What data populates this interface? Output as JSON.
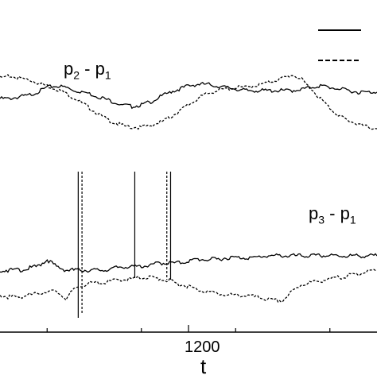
{
  "chart_data": {
    "type": "line",
    "xlabel": "t",
    "x_ticks": [
      1200
    ],
    "legend_placement": "top-right",
    "legend_entries": [
      {
        "style": "solid",
        "label": ""
      },
      {
        "style": "dashed",
        "label": ""
      }
    ],
    "annotations": [
      {
        "text_main": "p",
        "sub_a": "2",
        "mid": " - p",
        "sub_b": "1"
      },
      {
        "text_main": "p",
        "sub_a": "3",
        "mid": " - p",
        "sub_b": "1"
      }
    ],
    "x_range": [
      1000,
      1400
    ],
    "panels": [
      {
        "label": "p2 - p1",
        "series": [
          {
            "style": "solid",
            "x": [
              1000,
              1010,
              1020,
              1030,
              1040,
              1050,
              1060,
              1070,
              1080,
              1090,
              1100,
              1110,
              1120,
              1130,
              1140,
              1150,
              1160,
              1170,
              1180,
              1190,
              1200,
              1210,
              1220,
              1230,
              1240,
              1250,
              1260,
              1270,
              1280,
              1290,
              1300,
              1310,
              1320,
              1330,
              1340,
              1350,
              1360,
              1370,
              1380,
              1390,
              1400
            ],
            "y": [
              0.1,
              0.1,
              0.15,
              0.2,
              0.3,
              0.45,
              0.5,
              0.45,
              0.35,
              0.3,
              0.2,
              0.1,
              0.0,
              -0.1,
              -0.15,
              -0.1,
              0.0,
              0.15,
              0.3,
              0.4,
              0.5,
              0.55,
              0.55,
              0.5,
              0.45,
              0.4,
              0.35,
              0.35,
              0.35,
              0.35,
              0.35,
              0.35,
              0.4,
              0.45,
              0.5,
              0.45,
              0.4,
              0.35,
              0.3,
              0.3,
              0.3
            ]
          },
          {
            "style": "dashed",
            "x": [
              1000,
              1010,
              1020,
              1030,
              1040,
              1050,
              1060,
              1070,
              1080,
              1090,
              1100,
              1110,
              1120,
              1130,
              1140,
              1150,
              1160,
              1170,
              1180,
              1190,
              1200,
              1210,
              1220,
              1230,
              1240,
              1250,
              1260,
              1270,
              1280,
              1290,
              1300,
              1310,
              1320,
              1330,
              1340,
              1350,
              1360,
              1370,
              1380,
              1390,
              1400
            ],
            "y": [
              0.75,
              0.8,
              0.75,
              0.7,
              0.6,
              0.5,
              0.4,
              0.25,
              0.1,
              -0.1,
              -0.3,
              -0.5,
              -0.65,
              -0.75,
              -0.8,
              -0.8,
              -0.75,
              -0.65,
              -0.5,
              -0.3,
              -0.1,
              0.1,
              0.25,
              0.35,
              0.4,
              0.45,
              0.45,
              0.5,
              0.55,
              0.65,
              0.75,
              0.85,
              0.7,
              0.4,
              0.1,
              -0.2,
              -0.45,
              -0.6,
              -0.7,
              -0.8,
              -0.85
            ]
          }
        ]
      },
      {
        "label": "p3 - p1",
        "series": [
          {
            "style": "solid",
            "x": [
              1000,
              1010,
              1020,
              1030,
              1040,
              1050,
              1060,
              1070,
              1080,
              1090,
              1100,
              1110,
              1120,
              1130,
              1140,
              1150,
              1160,
              1170,
              1180,
              1190,
              1200,
              1210,
              1220,
              1230,
              1240,
              1250,
              1260,
              1270,
              1280,
              1290,
              1300,
              1310,
              1320,
              1330,
              1340,
              1350,
              1360,
              1370,
              1380,
              1390,
              1400
            ],
            "y": [
              0.0,
              0.0,
              0.0,
              0.05,
              0.1,
              0.3,
              0.1,
              0.0,
              0.0,
              0.0,
              0.0,
              0.0,
              0.05,
              0.1,
              0.1,
              0.1,
              0.15,
              0.2,
              0.2,
              0.2,
              0.25,
              0.3,
              0.3,
              0.3,
              0.35,
              0.35,
              0.35,
              0.35,
              0.4,
              0.4,
              0.4,
              0.4,
              0.4,
              0.4,
              0.4,
              0.4,
              0.4,
              0.4,
              0.4,
              0.4,
              0.4
            ]
          },
          {
            "style": "dashed",
            "x": [
              1000,
              1010,
              1020,
              1030,
              1040,
              1050,
              1060,
              1070,
              1080,
              1090,
              1100,
              1110,
              1120,
              1130,
              1140,
              1150,
              1160,
              1170,
              1180,
              1190,
              1200,
              1210,
              1220,
              1230,
              1240,
              1250,
              1260,
              1270,
              1280,
              1290,
              1300,
              1310,
              1320,
              1330,
              1340,
              1350,
              1360,
              1370,
              1380,
              1390,
              1400
            ],
            "y": [
              -0.7,
              -0.75,
              -0.75,
              -0.7,
              -0.65,
              -0.6,
              -0.6,
              -0.8,
              -0.5,
              -0.4,
              -0.35,
              -0.35,
              -0.3,
              -0.25,
              -0.25,
              -0.2,
              -0.2,
              -0.25,
              -0.3,
              -0.4,
              -0.45,
              -0.55,
              -0.6,
              -0.65,
              -0.7,
              -0.7,
              -0.7,
              -0.75,
              -0.8,
              -0.85,
              -0.85,
              -0.6,
              -0.4,
              -0.35,
              -0.3,
              -0.25,
              -0.2,
              -0.15,
              -0.1,
              -0.05,
              0.0
            ]
          }
        ]
      }
    ]
  }
}
